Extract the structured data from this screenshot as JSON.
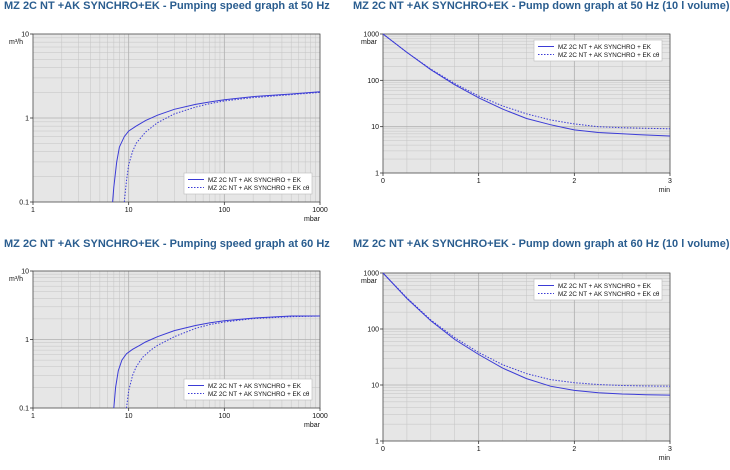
{
  "chart_data": [
    {
      "type": "line",
      "title": "MZ 2C NT +AK SYNCHRO+EK - Pumping speed graph at 50 Hz",
      "xscale": "log",
      "yscale": "log",
      "xlim": [
        1,
        1000
      ],
      "ylim": [
        0.1,
        10
      ],
      "xticks": [
        "1",
        "10",
        "100",
        "1000"
      ],
      "yticks": [
        "0.1",
        "1",
        "10"
      ],
      "xlabel": "mbar",
      "ylabel": "m³/h",
      "legend_position": "bottom-right",
      "colors": {
        "series": "#3b3bd6",
        "plot_bg": "#e6e6e6",
        "grid": "#c4c4c4"
      },
      "series": [
        {
          "name": "MZ 2C NT + AK SYNCHRO + EK",
          "style": "solid",
          "points": [
            [
              6.8,
              0.1
            ],
            [
              7,
              0.15
            ],
            [
              7.5,
              0.3
            ],
            [
              8,
              0.45
            ],
            [
              9,
              0.6
            ],
            [
              10,
              0.7
            ],
            [
              12,
              0.8
            ],
            [
              15,
              0.93
            ],
            [
              20,
              1.08
            ],
            [
              30,
              1.27
            ],
            [
              50,
              1.45
            ],
            [
              70,
              1.55
            ],
            [
              100,
              1.65
            ],
            [
              200,
              1.8
            ],
            [
              500,
              1.93
            ],
            [
              1000,
              2.05
            ]
          ]
        },
        {
          "name": "MZ 2C NT + AK SYNCHRO + EK",
          "name_suffix": "cθ",
          "style": "dotted",
          "points": [
            [
              9,
              0.1
            ],
            [
              9.5,
              0.18
            ],
            [
              10,
              0.28
            ],
            [
              11,
              0.4
            ],
            [
              12,
              0.5
            ],
            [
              15,
              0.68
            ],
            [
              20,
              0.88
            ],
            [
              30,
              1.12
            ],
            [
              50,
              1.35
            ],
            [
              70,
              1.48
            ],
            [
              100,
              1.6
            ],
            [
              200,
              1.75
            ],
            [
              500,
              1.9
            ],
            [
              1000,
              2.02
            ]
          ]
        }
      ]
    },
    {
      "type": "line",
      "title": "MZ 2C NT +AK SYNCHRO+EK - Pump down graph at 50 Hz (10 l volume)",
      "xscale": "linear",
      "yscale": "log",
      "xlim": [
        0,
        3
      ],
      "ylim": [
        1,
        1000
      ],
      "xticks": [
        "0",
        "1",
        "2",
        "3"
      ],
      "yticks": [
        "1",
        "10",
        "100",
        "1000"
      ],
      "xlabel": "min",
      "ylabel": "mbar",
      "legend_position": "top-right",
      "colors": {
        "series": "#3b3bd6",
        "plot_bg": "#e6e6e6",
        "grid": "#c4c4c4"
      },
      "series": [
        {
          "name": "MZ 2C NT +  AK SYNCHRO + EK",
          "style": "solid",
          "points": [
            [
              0,
              1000
            ],
            [
              0.25,
              400
            ],
            [
              0.5,
              170
            ],
            [
              0.75,
              80
            ],
            [
              1,
              42
            ],
            [
              1.25,
              24
            ],
            [
              1.5,
              15
            ],
            [
              1.75,
              11
            ],
            [
              2,
              8.5
            ],
            [
              2.25,
              7.5
            ],
            [
              2.5,
              7
            ],
            [
              2.75,
              6.6
            ],
            [
              3,
              6.3
            ]
          ]
        },
        {
          "name": "MZ 2C NT +  AK SYNCHRO + EK",
          "name_suffix": "cθ",
          "style": "dotted",
          "points": [
            [
              0,
              1000
            ],
            [
              0.25,
              400
            ],
            [
              0.5,
              175
            ],
            [
              0.75,
              85
            ],
            [
              1,
              46
            ],
            [
              1.25,
              28
            ],
            [
              1.5,
              19
            ],
            [
              1.75,
              14
            ],
            [
              2,
              11.5
            ],
            [
              2.25,
              10
            ],
            [
              2.5,
              9.5
            ],
            [
              2.75,
              9.2
            ],
            [
              3,
              9
            ]
          ]
        }
      ]
    },
    {
      "type": "line",
      "title": "MZ 2C NT +AK SYNCHRO+EK - Pumping speed graph at 60 Hz",
      "xscale": "log",
      "yscale": "log",
      "xlim": [
        1,
        1000
      ],
      "ylim": [
        0.1,
        10
      ],
      "xticks": [
        "1",
        "10",
        "100",
        "1000"
      ],
      "yticks": [
        "0.1",
        "1",
        "10"
      ],
      "xlabel": "mbar",
      "ylabel": "m³/h",
      "legend_position": "bottom-right",
      "colors": {
        "series": "#3b3bd6",
        "plot_bg": "#e6e6e6",
        "grid": "#c4c4c4"
      },
      "series": [
        {
          "name": "MZ 2C NT + AK SYNCHRO + EK",
          "style": "solid",
          "points": [
            [
              7,
              0.1
            ],
            [
              7.3,
              0.2
            ],
            [
              7.8,
              0.35
            ],
            [
              8.5,
              0.5
            ],
            [
              9.5,
              0.62
            ],
            [
              11,
              0.72
            ],
            [
              13,
              0.82
            ],
            [
              15,
              0.92
            ],
            [
              20,
              1.1
            ],
            [
              30,
              1.35
            ],
            [
              50,
              1.6
            ],
            [
              70,
              1.75
            ],
            [
              100,
              1.88
            ],
            [
              200,
              2.05
            ],
            [
              500,
              2.2
            ],
            [
              1000,
              2.2
            ]
          ]
        },
        {
          "name": "MZ 2C NT + AK SYNCHRO + EK",
          "name_suffix": "cθ",
          "style": "dotted",
          "points": [
            [
              9.5,
              0.1
            ],
            [
              10,
              0.18
            ],
            [
              11,
              0.3
            ],
            [
              12,
              0.4
            ],
            [
              14,
              0.55
            ],
            [
              17,
              0.7
            ],
            [
              20,
              0.82
            ],
            [
              30,
              1.1
            ],
            [
              50,
              1.45
            ],
            [
              70,
              1.65
            ],
            [
              100,
              1.8
            ],
            [
              200,
              2.02
            ],
            [
              500,
              2.15
            ],
            [
              1000,
              2.2
            ]
          ]
        }
      ]
    },
    {
      "type": "line",
      "title": "MZ 2C NT +AK SYNCHRO+EK - Pump down graph at 60 Hz (10 l volume)",
      "xscale": "linear",
      "yscale": "log",
      "xlim": [
        0,
        3
      ],
      "ylim": [
        1,
        1000
      ],
      "xticks": [
        "0",
        "1",
        "2",
        "3"
      ],
      "yticks": [
        "1",
        "10",
        "100",
        "1000"
      ],
      "xlabel": "min",
      "ylabel": "mbar",
      "legend_position": "top-right",
      "colors": {
        "series": "#3b3bd6",
        "plot_bg": "#e6e6e6",
        "grid": "#c4c4c4"
      },
      "series": [
        {
          "name": "MZ 2C NT + AK SYNCHRO + EK",
          "style": "solid",
          "points": [
            [
              0,
              1000
            ],
            [
              0.25,
              350
            ],
            [
              0.5,
              140
            ],
            [
              0.75,
              65
            ],
            [
              1,
              35
            ],
            [
              1.25,
              20
            ],
            [
              1.5,
              13
            ],
            [
              1.75,
              9.5
            ],
            [
              2,
              8
            ],
            [
              2.25,
              7.3
            ],
            [
              2.5,
              6.9
            ],
            [
              2.75,
              6.7
            ],
            [
              3,
              6.6
            ]
          ]
        },
        {
          "name": "MZ 2C NT + AK SYNCHRO + EK",
          "name_suffix": "cθ",
          "style": "dotted",
          "points": [
            [
              0,
              1000
            ],
            [
              0.25,
              360
            ],
            [
              0.5,
              145
            ],
            [
              0.75,
              70
            ],
            [
              1,
              38
            ],
            [
              1.25,
              23
            ],
            [
              1.5,
              16
            ],
            [
              1.75,
              12.5
            ],
            [
              2,
              11
            ],
            [
              2.25,
              10.2
            ],
            [
              2.5,
              9.8
            ],
            [
              2.75,
              9.6
            ],
            [
              3,
              9.5
            ]
          ]
        }
      ]
    }
  ]
}
